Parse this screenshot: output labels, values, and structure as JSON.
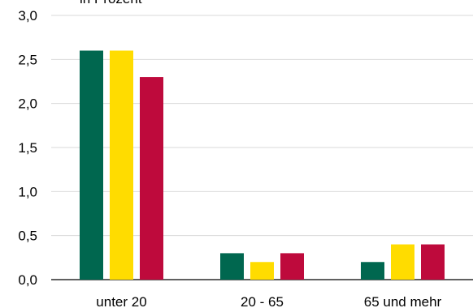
{
  "chart_data": {
    "type": "bar",
    "unit_label": "in Prozent",
    "categories": [
      "unter 20",
      "20 - 65",
      "65 und mehr"
    ],
    "series": [
      {
        "color": "#00674f",
        "values": [
          2.6,
          0.3,
          0.2
        ]
      },
      {
        "color": "#ffdc00",
        "values": [
          2.6,
          0.2,
          0.4
        ]
      },
      {
        "color": "#be0a3c",
        "values": [
          2.3,
          0.3,
          0.4
        ]
      }
    ],
    "ylim": [
      0,
      3.0
    ],
    "yticks": [
      "0,0",
      "0,5",
      "1,0",
      "1,5",
      "2,0",
      "2,5",
      "3,0"
    ],
    "grid": true,
    "legend": "none"
  }
}
